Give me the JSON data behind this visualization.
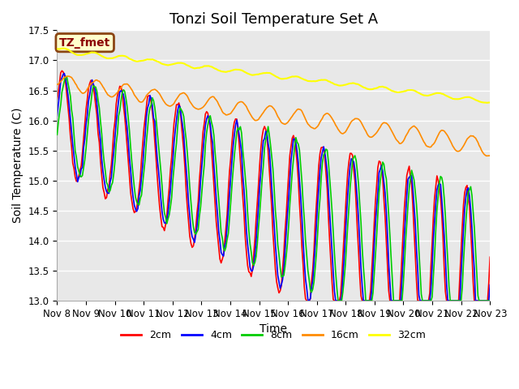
{
  "title": "Tonzi Soil Temperature Set A",
  "xlabel": "Time",
  "ylabel": "Soil Temperature (C)",
  "ylim": [
    13.0,
    17.5
  ],
  "yticks": [
    13.0,
    13.5,
    14.0,
    14.5,
    15.0,
    15.5,
    16.0,
    16.5,
    17.0,
    17.5
  ],
  "annotation_text": "TZ_fmet",
  "annotation_bbox": {
    "boxstyle": "round,pad=0.3",
    "facecolor": "#ffffcc",
    "edgecolor": "#8B4513",
    "linewidth": 2
  },
  "annotation_color": "#8B0000",
  "annotation_fontsize": 10,
  "annotation_fontweight": "bold",
  "xtick_labels": [
    "Nov 8",
    "Nov 9",
    "Nov 10",
    "Nov 11",
    "Nov 12",
    "Nov 13",
    "Nov 14",
    "Nov 15",
    "Nov 16",
    "Nov 17",
    "Nov 18",
    "Nov 19",
    "Nov 20",
    "Nov 21",
    "Nov 22",
    "Nov 23"
  ],
  "series": {
    "2cm": {
      "color": "#ff0000",
      "linewidth": 1.2
    },
    "4cm": {
      "color": "#0000ff",
      "linewidth": 1.2
    },
    "8cm": {
      "color": "#00cc00",
      "linewidth": 1.2
    },
    "16cm": {
      "color": "#ff8c00",
      "linewidth": 1.2
    },
    "32cm": {
      "color": "#ffff00",
      "linewidth": 1.5
    }
  },
  "background_color": "#ffffff",
  "plot_background_color": "#e8e8e8",
  "grid_color": "#ffffff",
  "title_fontsize": 13,
  "axis_label_fontsize": 10,
  "tick_fontsize": 8.5
}
